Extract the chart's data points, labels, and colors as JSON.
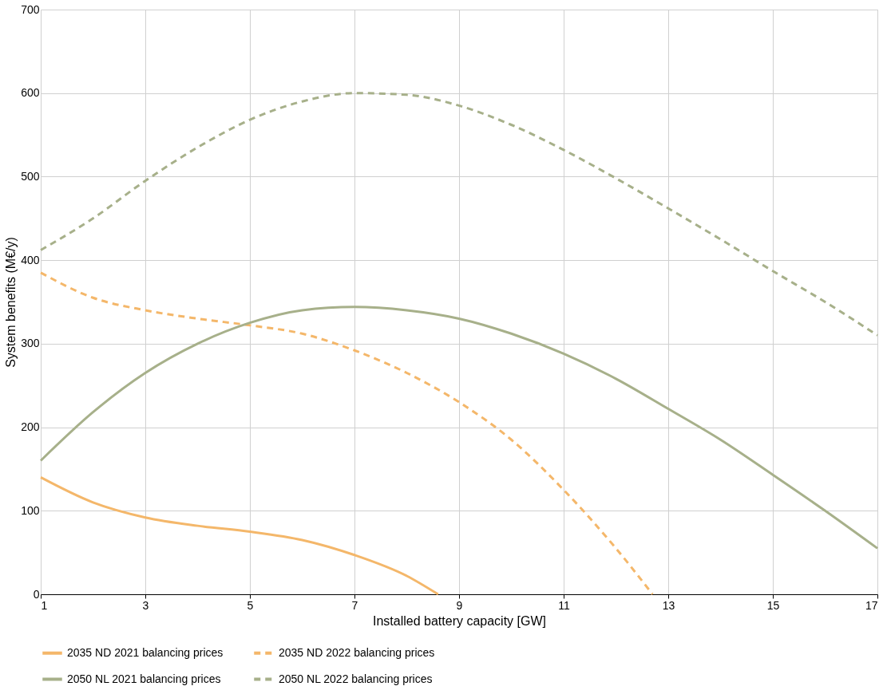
{
  "chart_data": {
    "type": "line",
    "xlabel": "Installed battery capacity [GW]",
    "ylabel": "System benefits (M€/y)",
    "xlim": [
      1,
      17
    ],
    "xticks": [
      1,
      3,
      5,
      7,
      9,
      11,
      13,
      15,
      17
    ],
    "ylim": [
      0,
      700
    ],
    "yticks": [
      0,
      100,
      200,
      300,
      400,
      500,
      600,
      700
    ],
    "grid": true,
    "legend": "bottom",
    "marker": "none",
    "series": [
      {
        "name": "2035 ND 2021 balancing prices",
        "color": "#f4b76a",
        "line_style": "solid",
        "x": [
          1,
          2,
          3,
          4,
          5,
          6,
          7,
          8,
          8.6
        ],
        "values": [
          140,
          110,
          92,
          82,
          75,
          65,
          47,
          22,
          0
        ]
      },
      {
        "name": "2035 ND 2022 balancing prices",
        "color": "#f4b76a",
        "line_style": "dashed",
        "x": [
          1,
          2,
          3,
          4,
          5,
          6,
          7,
          8,
          9,
          10,
          11,
          12,
          12.7
        ],
        "values": [
          385,
          355,
          340,
          330,
          322,
          312,
          292,
          265,
          230,
          185,
          125,
          55,
          0
        ]
      },
      {
        "name": "2050 NL 2021 balancing prices",
        "color": "#a7b08a",
        "line_style": "solid",
        "x": [
          1,
          2,
          3,
          4,
          5,
          6,
          7,
          8,
          9,
          10,
          11,
          12,
          13,
          14,
          15,
          16,
          17
        ],
        "values": [
          160,
          218,
          265,
          300,
          325,
          340,
          344,
          340,
          330,
          312,
          288,
          258,
          222,
          185,
          143,
          100,
          55
        ]
      },
      {
        "name": "2050 NL 2022 balancing prices",
        "color": "#a7b08a",
        "line_style": "dashed",
        "x": [
          1,
          2,
          3,
          4,
          5,
          6,
          7,
          8,
          9,
          10,
          11,
          12,
          13,
          14,
          15,
          16,
          17
        ],
        "values": [
          412,
          450,
          495,
          535,
          568,
          590,
          600,
          598,
          585,
          562,
          532,
          498,
          462,
          425,
          387,
          350,
          310
        ]
      }
    ]
  }
}
